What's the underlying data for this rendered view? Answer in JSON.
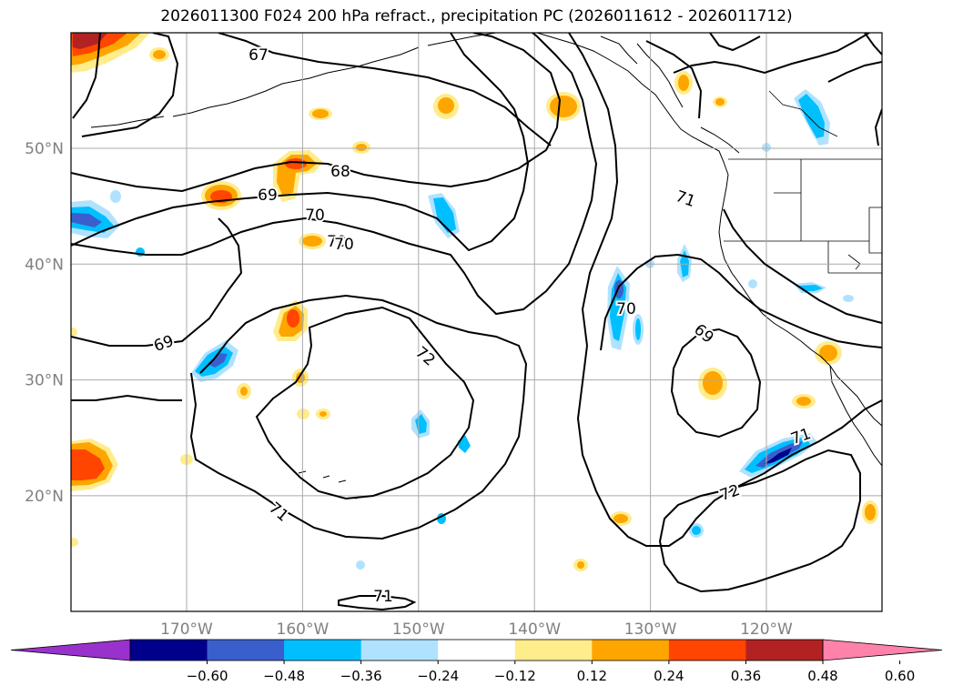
{
  "title": "2026011300 F024 200 hPa refract., precipitation PC (2026011612 - 2026011712)",
  "map": {
    "lon_labels": [
      {
        "lon": -170,
        "text": "170°W"
      },
      {
        "lon": -160,
        "text": "160°W"
      },
      {
        "lon": -150,
        "text": "150°W"
      },
      {
        "lon": -140,
        "text": "140°W"
      },
      {
        "lon": -130,
        "text": "130°W"
      },
      {
        "lon": -120,
        "text": "120°W"
      }
    ],
    "lat_labels": [
      {
        "lat": 50,
        "text": "50°N"
      },
      {
        "lat": 40,
        "text": "40°N"
      },
      {
        "lat": 30,
        "text": "30°N"
      },
      {
        "lat": 20,
        "text": "20°N"
      }
    ],
    "grid_color": "#aaaaaa",
    "label_color": "#808080",
    "contour_labels": [
      {
        "text": "67"
      },
      {
        "text": "68"
      },
      {
        "text": "69"
      },
      {
        "text": "70"
      },
      {
        "text": "70"
      },
      {
        "text": "69"
      },
      {
        "text": "72"
      },
      {
        "text": "71"
      },
      {
        "text": "71"
      },
      {
        "text": "70"
      },
      {
        "text": "69"
      },
      {
        "text": "71"
      },
      {
        "text": "72"
      },
      {
        "text": "70"
      },
      {
        "text": "71"
      }
    ]
  },
  "colorbar": {
    "ticks": [
      "−0.60",
      "−0.48",
      "−0.36",
      "−0.24",
      "−0.12",
      "0.12",
      "0.24",
      "0.36",
      "0.48",
      "0.60"
    ],
    "colors": [
      "#9932cc",
      "#00008b",
      "#3a5fcd",
      "#00bfff",
      "#b0e2ff",
      "#ffffff",
      "#ffec8b",
      "#ffa500",
      "#ff4500",
      "#b22222",
      "#ff82ab"
    ]
  }
}
